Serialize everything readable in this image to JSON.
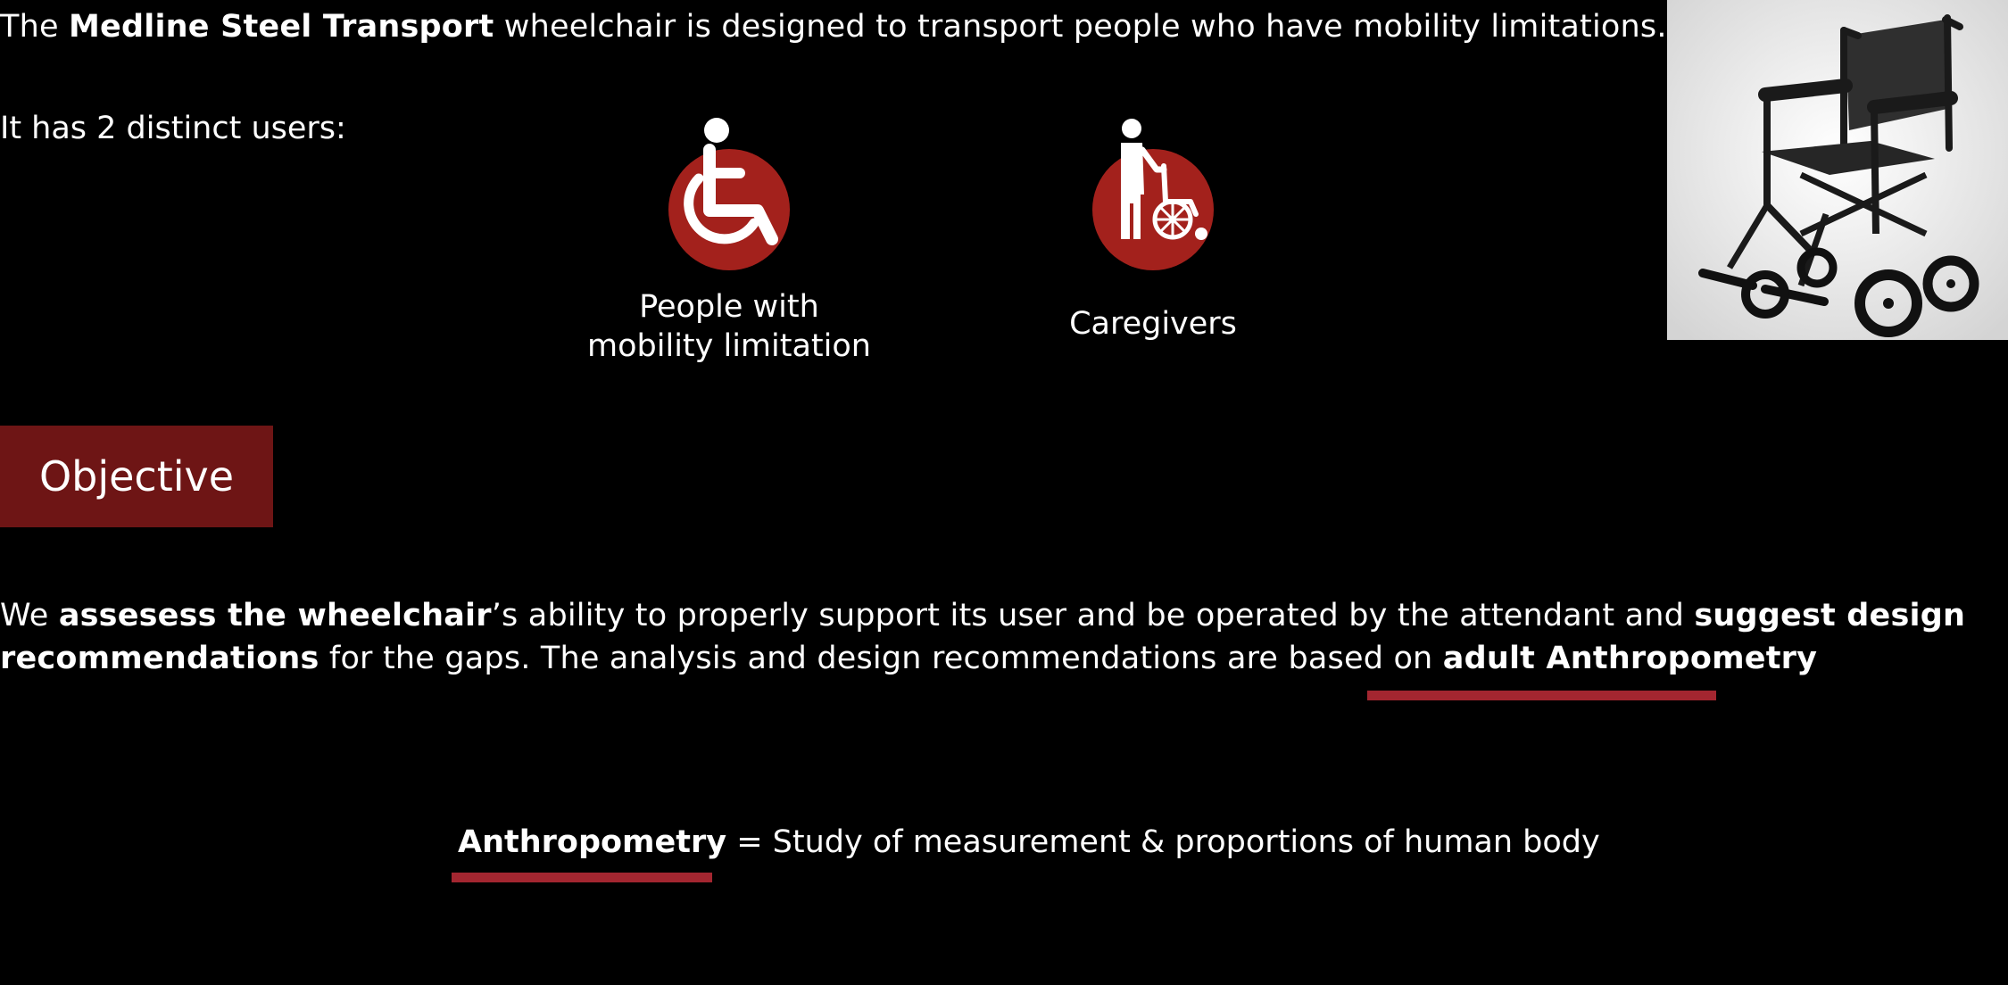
{
  "intro": {
    "prefix": "The ",
    "product": "Medline Steel Transport",
    "suffix": " wheelchair is designed to transport people who have mobility limitations."
  },
  "users": {
    "heading": "It has 2 distinct users:",
    "items": [
      {
        "icon": "wheelchair-user-icon",
        "label_line1": "People with",
        "label_line2": "mobility limitation"
      },
      {
        "icon": "caregiver-pushing-wheelchair-icon",
        "label": "Caregivers"
      }
    ]
  },
  "photo": {
    "icon": "transport-wheelchair-photo"
  },
  "objective": {
    "label": "Objective",
    "t1": "We ",
    "b1": "assesess the wheelchair",
    "t2": "’s ability to properly support its user and be operated by the attendant and ",
    "b2": "suggest design recommendations",
    "t3": " for the gaps. The analysis and design recommendations are based on ",
    "b3": "adult Anthropometry"
  },
  "definition": {
    "term": "Anthropometry",
    "text": " = Study of measurement & proportions of human body"
  },
  "colors": {
    "background": "#000000",
    "icon_circle": "#a3211c",
    "objective_box": "#6e1515",
    "underline": "#a32630",
    "text": "#ffffff"
  }
}
